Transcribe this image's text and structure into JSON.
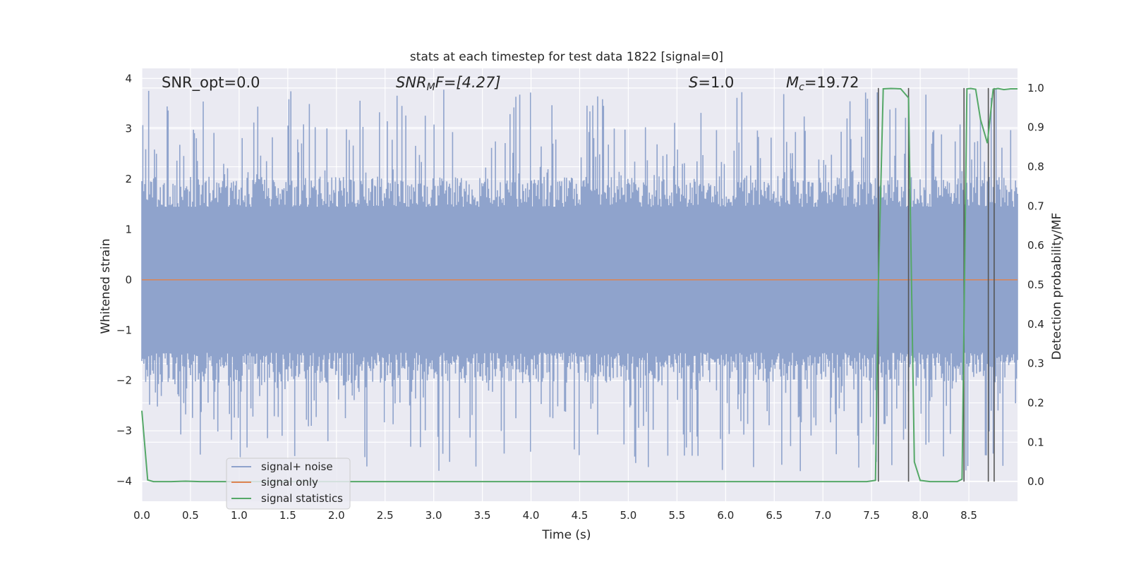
{
  "chart_data": {
    "type": "line",
    "title": "stats at each timestep for test data 1822 [signal=0]",
    "xlabel": "Time (s)",
    "ylabel_left": "Whitened strain",
    "ylabel_right": "Detection probability/MF",
    "xlim": [
      0.0,
      9.0
    ],
    "ylim_left": [
      -4.4,
      4.2
    ],
    "ylim_right": [
      -0.05,
      1.05
    ],
    "xticks": [
      "0.0",
      "0.5",
      "1.0",
      "1.5",
      "2.0",
      "2.5",
      "3.0",
      "3.5",
      "4.0",
      "4.5",
      "5.0",
      "5.5",
      "6.0",
      "6.5",
      "7.0",
      "7.5",
      "8.0",
      "8.5"
    ],
    "yticks_left": [
      "4",
      "3",
      "2",
      "1",
      "0",
      "−1",
      "−2",
      "−3",
      "−4"
    ],
    "yticks_right": [
      "1.0",
      "0.9",
      "0.8",
      "0.7",
      "0.6",
      "0.5",
      "0.4",
      "0.3",
      "0.2",
      "0.1",
      "0.0"
    ],
    "grid": true,
    "legend_position": "lower-left",
    "annotations": {
      "snr_opt": "SNR_opt=0.0",
      "snr_mf_main": "SNR",
      "snr_mf_sub": "M",
      "snr_mf_rest": "F=[4.27]",
      "s_label": "S",
      "s_value": "=1.0",
      "mc_main": "M",
      "mc_sub": "c",
      "mc_value": "=19.72"
    },
    "series": [
      {
        "name": "signal+ noise",
        "color": "#8fa3cc",
        "axis": "left",
        "description_amplitude": {
          "typical_abs_max": 1.45,
          "peak_max": 3.8,
          "peak_min": -3.8
        }
      },
      {
        "name": "signal only",
        "color": "#dd8452",
        "axis": "left",
        "x": [
          0.0,
          9.0
        ],
        "y": [
          0.0,
          0.0
        ]
      },
      {
        "name": "signal statistics",
        "color": "#55a868",
        "axis": "right",
        "x": [
          0.0,
          0.06,
          0.12,
          0.3,
          0.45,
          0.6,
          1.0,
          2.0,
          3.0,
          4.0,
          5.0,
          6.0,
          7.0,
          7.45,
          7.54,
          7.57,
          7.62,
          7.7,
          7.8,
          7.88,
          7.94,
          8.0,
          8.1,
          8.2,
          8.3,
          8.38,
          8.43,
          8.48,
          8.52,
          8.57,
          8.62,
          8.69,
          8.75,
          8.8,
          8.86,
          8.93,
          9.0
        ],
        "y": [
          0.18,
          0.004,
          0.0,
          0.0,
          0.001,
          0.0,
          0.0,
          0.0,
          0.0,
          0.0,
          0.0,
          0.0,
          0.0,
          0.0,
          0.003,
          0.5,
          0.998,
          0.999,
          0.998,
          0.975,
          0.05,
          0.003,
          0.0,
          0.0,
          0.0,
          0.0,
          0.006,
          0.998,
          0.999,
          0.997,
          0.92,
          0.86,
          0.997,
          0.999,
          0.996,
          0.998,
          0.998
        ]
      }
    ],
    "vertical_lines_x": [
      7.57,
      7.88,
      8.45,
      8.7,
      8.76
    ]
  }
}
